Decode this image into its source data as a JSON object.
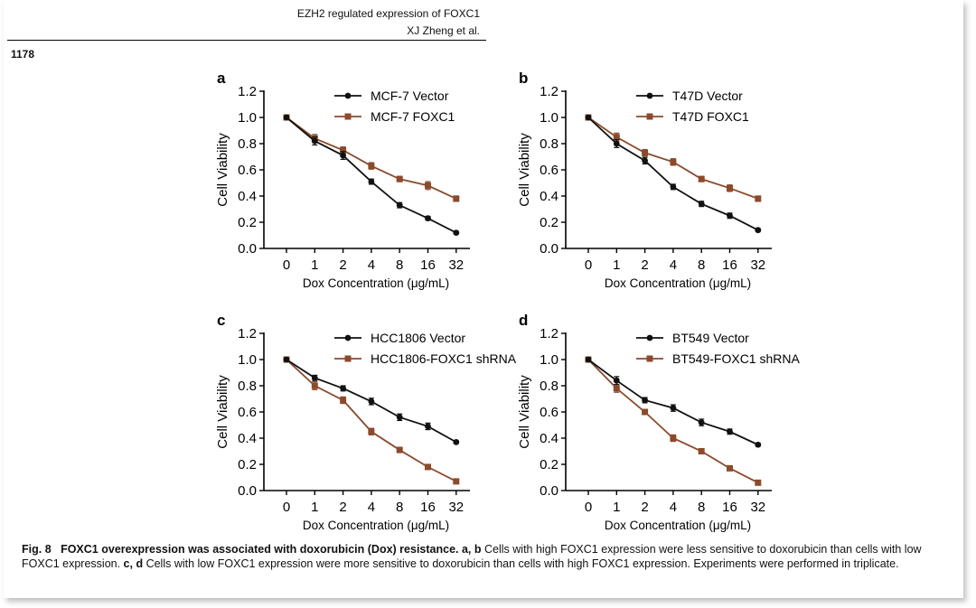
{
  "header": {
    "running_title": "EZH2 regulated expression of FOXC1",
    "authors": "XJ Zheng et al.",
    "page_number": "1178"
  },
  "caption": {
    "fig_label": "Fig. 8",
    "title": "FOXC1 overexpression was associated with doxorubicin (Dox) resistance.",
    "part1_labels": "a, b",
    "part1_text": " Cells with high FOXC1 expression were less sensitive to doxorubicin than cells with low FOXC1 expression. ",
    "part2_labels": "c, d",
    "part2_text": " Cells with low FOXC1 expression were more sensitive to doxorubicin than cells with high FOXC1 expression. Experiments were performed in triplicate."
  },
  "colors": {
    "vector": "#111111",
    "treat": "#8B4A2B"
  },
  "chart_data": [
    {
      "panel": "a",
      "type": "line",
      "categories": [
        "0",
        "1",
        "2",
        "4",
        "8",
        "16",
        "32"
      ],
      "xlabel": "Dox Concentration (μg/mL)",
      "ylabel": "Cell Viability",
      "ylim": [
        0,
        1.2
      ],
      "yticks": [
        "0.0",
        "0.2",
        "0.4",
        "0.6",
        "0.8",
        "1.0",
        "1.2"
      ],
      "legend_position": "top-right",
      "series": [
        {
          "name": "MCF-7 Vector",
          "values": [
            1.0,
            0.82,
            0.71,
            0.51,
            0.33,
            0.23,
            0.12
          ],
          "errors": [
            0.01,
            0.03,
            0.03,
            0.02,
            0.02,
            0.015,
            0.01
          ]
        },
        {
          "name": "MCF-7 FOXC1",
          "values": [
            1.0,
            0.84,
            0.75,
            0.63,
            0.53,
            0.48,
            0.38
          ],
          "errors": [
            0.01,
            0.03,
            0.025,
            0.025,
            0.02,
            0.03,
            0.02
          ]
        }
      ]
    },
    {
      "panel": "b",
      "type": "line",
      "categories": [
        "0",
        "1",
        "2",
        "4",
        "8",
        "16",
        "32"
      ],
      "xlabel": "Dox Concentration (μg/mL)",
      "ylabel": "Cell Viability",
      "ylim": [
        0,
        1.2
      ],
      "yticks": [
        "0.0",
        "0.2",
        "0.4",
        "0.6",
        "0.8",
        "1.0",
        "1.2"
      ],
      "legend_position": "top-right",
      "series": [
        {
          "name": "T47D Vector",
          "values": [
            1.0,
            0.8,
            0.67,
            0.47,
            0.34,
            0.25,
            0.14
          ],
          "errors": [
            0.01,
            0.03,
            0.025,
            0.02,
            0.02,
            0.02,
            0.01
          ]
        },
        {
          "name": "T47D FOXC1",
          "values": [
            1.0,
            0.85,
            0.73,
            0.66,
            0.53,
            0.46,
            0.38
          ],
          "errors": [
            0.01,
            0.03,
            0.025,
            0.025,
            0.02,
            0.025,
            0.02
          ]
        }
      ]
    },
    {
      "panel": "c",
      "type": "line",
      "categories": [
        "0",
        "1",
        "2",
        "4",
        "8",
        "16",
        "32"
      ],
      "xlabel": "Dox Concentration (μg/mL)",
      "ylabel": "Cell Viability",
      "ylim": [
        0,
        1.2
      ],
      "yticks": [
        "0.0",
        "0.2",
        "0.4",
        "0.6",
        "0.8",
        "1.0",
        "1.2"
      ],
      "legend_position": "top-right",
      "series": [
        {
          "name": "HCC1806 Vector",
          "values": [
            1.0,
            0.86,
            0.78,
            0.68,
            0.56,
            0.49,
            0.37
          ],
          "errors": [
            0.01,
            0.02,
            0.02,
            0.025,
            0.025,
            0.025,
            0.01
          ]
        },
        {
          "name": "HCC1806-FOXC1 shRNA",
          "values": [
            1.0,
            0.8,
            0.69,
            0.45,
            0.31,
            0.18,
            0.07
          ],
          "errors": [
            0.01,
            0.03,
            0.025,
            0.025,
            0.02,
            0.015,
            0.01
          ]
        }
      ]
    },
    {
      "panel": "d",
      "type": "line",
      "categories": [
        "0",
        "1",
        "2",
        "4",
        "8",
        "16",
        "32"
      ],
      "xlabel": "Dox Concentration (μg/mL)",
      "ylabel": "Cell Viability",
      "ylim": [
        0,
        1.2
      ],
      "yticks": [
        "0.0",
        "0.2",
        "0.4",
        "0.6",
        "0.8",
        "1.0",
        "1.2"
      ],
      "legend_position": "top-right",
      "series": [
        {
          "name": "BT549 Vector",
          "values": [
            1.0,
            0.84,
            0.69,
            0.63,
            0.52,
            0.45,
            0.35
          ],
          "errors": [
            0.01,
            0.03,
            0.02,
            0.025,
            0.025,
            0.02,
            0.01
          ]
        },
        {
          "name": "BT549-FOXC1 shRNA",
          "values": [
            1.0,
            0.78,
            0.6,
            0.4,
            0.3,
            0.17,
            0.06
          ],
          "errors": [
            0.01,
            0.03,
            0.02,
            0.025,
            0.02,
            0.015,
            0.01
          ]
        }
      ]
    }
  ]
}
